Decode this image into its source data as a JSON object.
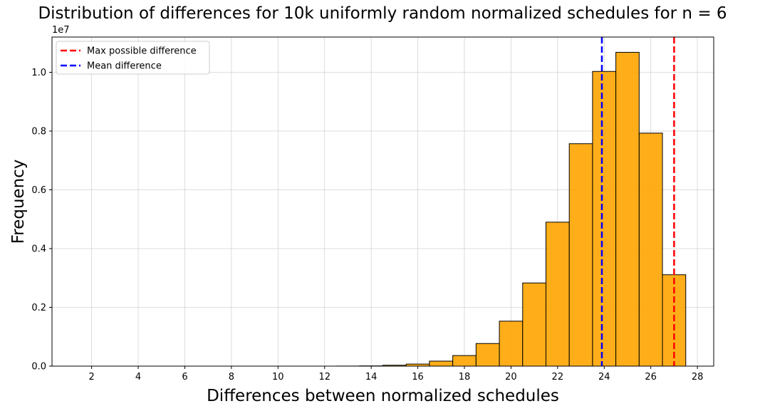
{
  "chart_data": {
    "type": "bar",
    "title": "Distribution of differences for 10k uniformly random normalized schedules for n = 6",
    "xlabel": "Differences between normalized schedules",
    "ylabel": "Frequency",
    "y_offset_label": "1e7",
    "xlim": [
      0.3,
      28.7
    ],
    "ylim": [
      0,
      11200000
    ],
    "xticks": [
      2,
      4,
      6,
      8,
      10,
      12,
      14,
      16,
      18,
      20,
      22,
      24,
      26,
      28
    ],
    "yticks": [
      0,
      2000000,
      4000000,
      6000000,
      8000000,
      10000000
    ],
    "ytick_labels": [
      "0.0",
      "0.2",
      "0.4",
      "0.6",
      "0.8",
      "1.0"
    ],
    "grid": true,
    "bar_color": "#ffa500",
    "bar_edge_color": "#000000",
    "bins": [
      {
        "start": 0.5,
        "end": 1.5,
        "value": 0
      },
      {
        "start": 1.5,
        "end": 2.5,
        "value": 0
      },
      {
        "start": 2.5,
        "end": 3.5,
        "value": 0
      },
      {
        "start": 3.5,
        "end": 4.5,
        "value": 0
      },
      {
        "start": 4.5,
        "end": 5.5,
        "value": 0
      },
      {
        "start": 5.5,
        "end": 6.5,
        "value": 0
      },
      {
        "start": 6.5,
        "end": 7.5,
        "value": 0
      },
      {
        "start": 7.5,
        "end": 8.5,
        "value": 0
      },
      {
        "start": 8.5,
        "end": 9.5,
        "value": 0
      },
      {
        "start": 9.5,
        "end": 10.5,
        "value": 0
      },
      {
        "start": 10.5,
        "end": 11.5,
        "value": 0
      },
      {
        "start": 11.5,
        "end": 12.5,
        "value": 0
      },
      {
        "start": 12.5,
        "end": 13.5,
        "value": 2000
      },
      {
        "start": 13.5,
        "end": 14.5,
        "value": 8000
      },
      {
        "start": 14.5,
        "end": 15.5,
        "value": 30000
      },
      {
        "start": 15.5,
        "end": 16.5,
        "value": 70000
      },
      {
        "start": 16.5,
        "end": 17.5,
        "value": 170000
      },
      {
        "start": 17.5,
        "end": 18.5,
        "value": 360000
      },
      {
        "start": 18.5,
        "end": 19.5,
        "value": 770000
      },
      {
        "start": 19.5,
        "end": 20.5,
        "value": 1530000
      },
      {
        "start": 20.5,
        "end": 21.5,
        "value": 2830000
      },
      {
        "start": 21.5,
        "end": 22.5,
        "value": 4900000
      },
      {
        "start": 22.5,
        "end": 23.5,
        "value": 7570000
      },
      {
        "start": 23.5,
        "end": 24.5,
        "value": 10030000
      },
      {
        "start": 24.5,
        "end": 25.5,
        "value": 10680000
      },
      {
        "start": 25.5,
        "end": 26.5,
        "value": 7930000
      },
      {
        "start": 26.5,
        "end": 27.5,
        "value": 3110000
      }
    ],
    "reference_lines": [
      {
        "name": "Max possible difference",
        "x": 27,
        "color": "#ff0000"
      },
      {
        "name": "Mean difference",
        "x": 23.9,
        "color": "#0000ff"
      }
    ],
    "legend_position": "top-left"
  }
}
